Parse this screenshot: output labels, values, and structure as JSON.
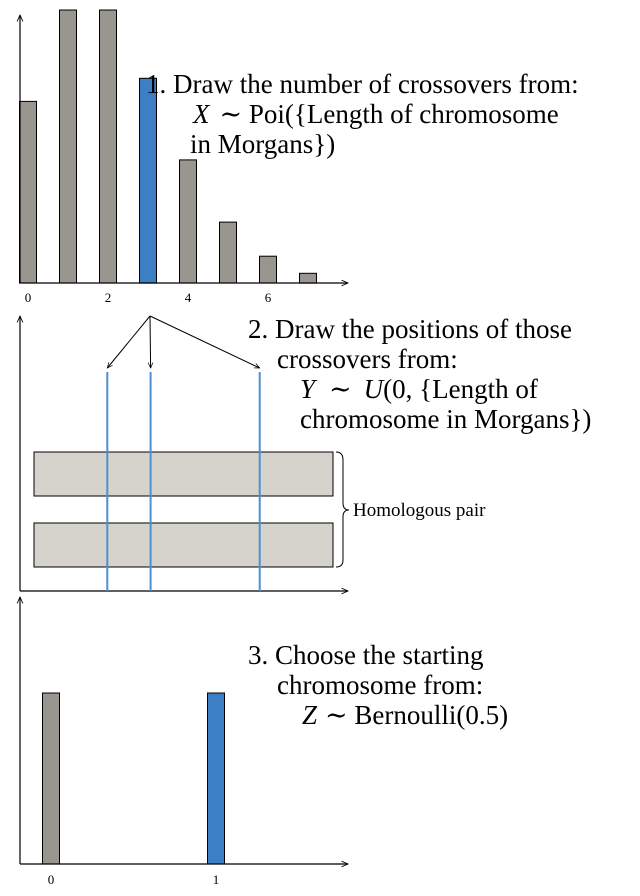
{
  "colors": {
    "gray_bar": "#99958f",
    "blue_bar": "#3d7fc4",
    "chromosome_fill": "#d6d3cd",
    "crossover_line": "#4f8fd1",
    "axis": "#000000"
  },
  "step1": {
    "line1": "1. Draw the number of crossovers from:",
    "line2_var": "X",
    "line2_rest": "∼ Poi({Length of chromosome",
    "line3": "in Morgans})"
  },
  "step2": {
    "line1": "2. Draw the positions of those",
    "line2": "crossovers from:",
    "line3_var": "Y",
    "line3_sym": "∼",
    "line3_U": "U",
    "line3_rest": "(0, {Length of",
    "line4": "chromosome in Morgans})",
    "homologous_label": "Homologous pair"
  },
  "step3": {
    "line1": "3. Choose the starting",
    "line2": "chromosome from:",
    "line3_var": "Z",
    "line3_rest": "∼ Bernoulli(0.5)"
  },
  "chart_data": [
    {
      "type": "bar",
      "x": [
        0,
        1,
        2,
        3,
        4,
        5,
        6,
        7
      ],
      "values": [
        0.149,
        0.224,
        0.224,
        0.168,
        0.101,
        0.05,
        0.022,
        0.008
      ],
      "highlight_index": 3,
      "tick_labels": [
        "0",
        "2",
        "4",
        "6"
      ],
      "tick_positions": [
        0,
        2,
        4,
        6
      ],
      "ylim": [
        0,
        0.224
      ],
      "title": "",
      "xlabel": "",
      "ylabel": ""
    },
    {
      "type": "bar",
      "x": [
        0,
        1
      ],
      "values": [
        0.5,
        0.5
      ],
      "highlight_index": 1,
      "tick_labels": [
        "0",
        "1"
      ],
      "tick_positions": [
        0,
        1
      ],
      "ylim": [
        0,
        1
      ],
      "title": "",
      "xlabel": "",
      "ylabel": ""
    }
  ],
  "crossovers": {
    "positions": [
      0.245,
      0.39,
      0.755
    ]
  }
}
